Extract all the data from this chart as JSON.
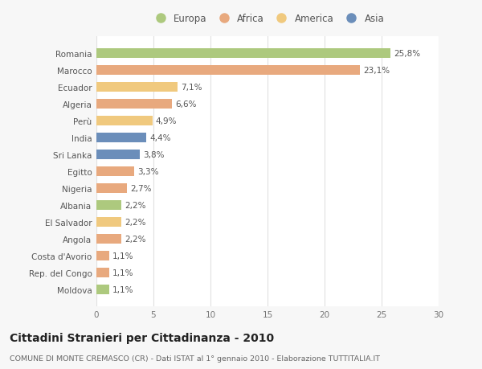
{
  "categories": [
    "Romania",
    "Marocco",
    "Ecuador",
    "Algeria",
    "Perù",
    "India",
    "Sri Lanka",
    "Egitto",
    "Nigeria",
    "Albania",
    "El Salvador",
    "Angola",
    "Costa d'Avorio",
    "Rep. del Congo",
    "Moldova"
  ],
  "values": [
    25.8,
    23.1,
    7.1,
    6.6,
    4.9,
    4.4,
    3.8,
    3.3,
    2.7,
    2.2,
    2.2,
    2.2,
    1.1,
    1.1,
    1.1
  ],
  "labels": [
    "25,8%",
    "23,1%",
    "7,1%",
    "6,6%",
    "4,9%",
    "4,4%",
    "3,8%",
    "3,3%",
    "2,7%",
    "2,2%",
    "2,2%",
    "2,2%",
    "1,1%",
    "1,1%",
    "1,1%"
  ],
  "colors": [
    "#adc97e",
    "#e8a97e",
    "#f0c97e",
    "#e8a97e",
    "#f0c97e",
    "#6b8eba",
    "#6b8eba",
    "#e8a97e",
    "#e8a97e",
    "#adc97e",
    "#f0c97e",
    "#e8a97e",
    "#e8a97e",
    "#e8a97e",
    "#adc97e"
  ],
  "legend_labels": [
    "Europa",
    "Africa",
    "America",
    "Asia"
  ],
  "legend_colors": [
    "#adc97e",
    "#e8a97e",
    "#f0c97e",
    "#6b8eba"
  ],
  "title": "Cittadini Stranieri per Cittadinanza - 2010",
  "subtitle": "COMUNE DI MONTE CREMASCO (CR) - Dati ISTAT al 1° gennaio 2010 - Elaborazione TUTTITALIA.IT",
  "xlim": [
    0,
    30
  ],
  "xticks": [
    0,
    5,
    10,
    15,
    20,
    25,
    30
  ],
  "background_color": "#f7f7f7",
  "plot_background": "#ffffff",
  "grid_color": "#e0e0e0",
  "bar_height": 0.55,
  "label_fontsize": 7.5,
  "tick_fontsize": 7.5,
  "title_fontsize": 10,
  "subtitle_fontsize": 6.8,
  "legend_fontsize": 8.5
}
